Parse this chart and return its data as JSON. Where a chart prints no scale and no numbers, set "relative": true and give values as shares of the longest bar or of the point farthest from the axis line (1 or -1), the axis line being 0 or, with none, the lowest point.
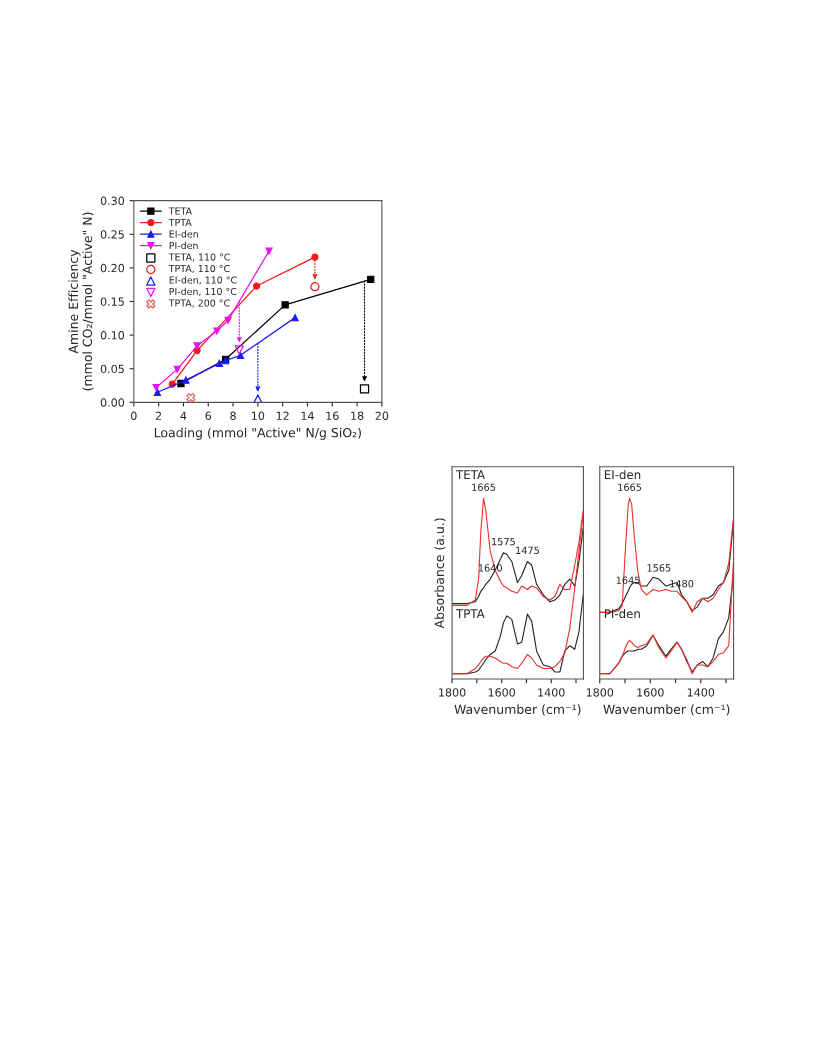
{
  "chart_data": [
    {
      "type": "line",
      "xlabel": "Loading (mmol \"Active\" N/g SiO₂)",
      "ylabel": "Amine Efficiency\n(mmol CO₂/mmol \"Active\" N)",
      "xlim": [
        0,
        20
      ],
      "xticks": [
        0,
        2,
        4,
        6,
        8,
        10,
        12,
        14,
        16,
        18,
        20
      ],
      "ylim": [
        0,
        0.3
      ],
      "yticks": [
        {
          "value": 0,
          "label": "0.00"
        },
        {
          "value": 0.05,
          "label": "0.05"
        },
        {
          "value": 0.1,
          "label": "0.10"
        },
        {
          "value": 0.15,
          "label": "0.15"
        },
        {
          "value": 0.2,
          "label": "0.20"
        },
        {
          "value": 0.25,
          "label": "0.25"
        },
        {
          "value": 0.3,
          "label": "0.30"
        }
      ],
      "legend": "top left",
      "series": [
        {
          "name": "TETA",
          "type": "line",
          "marker": "square",
          "color": "#000000",
          "x": [
            3.8,
            7.4,
            12.2,
            19.1
          ],
          "values": [
            0.028,
            0.064,
            0.145,
            0.183
          ]
        },
        {
          "name": "TPTA",
          "type": "line",
          "marker": "circle",
          "color": "#f01818",
          "x": [
            3.1,
            5.1,
            9.9,
            14.6
          ],
          "values": [
            0.027,
            0.077,
            0.173,
            0.216
          ]
        },
        {
          "name": "EI-den",
          "type": "line",
          "marker": "triangle",
          "color": "#1a1aee",
          "x": [
            1.9,
            4.2,
            6.9,
            7.4,
            8.6,
            13.0
          ],
          "values": [
            0.015,
            0.033,
            0.058,
            0.062,
            0.07,
            0.126
          ]
        },
        {
          "name": "PI-den",
          "type": "line",
          "marker": "triangle_down",
          "color": "#ee11ee",
          "x": [
            1.8,
            3.5,
            5.1,
            6.7,
            7.6,
            10.9
          ],
          "values": [
            0.022,
            0.049,
            0.084,
            0.106,
            0.122,
            0.225
          ]
        },
        {
          "name": "TETA, 110 °C",
          "type": "scatter",
          "marker": "square",
          "color": "#000000",
          "x": [
            18.6
          ],
          "values": [
            0.02
          ]
        },
        {
          "name": "TPTA, 110 °C",
          "type": "scatter",
          "marker": "circle",
          "color": "#f01818",
          "x": [
            14.6
          ],
          "values": [
            0.172
          ]
        },
        {
          "name": "EI-den, 110 °C",
          "type": "scatter",
          "marker": "triangle",
          "color": "#1a1aee",
          "x": [
            10.0
          ],
          "values": [
            0.005
          ]
        },
        {
          "name": "PI-den, 110 °C",
          "type": "scatter",
          "marker": "triangle_down",
          "color": "#ee11ee",
          "x": [
            8.5
          ],
          "values": [
            0.078
          ]
        },
        {
          "name": "TPTA, 200 °C",
          "type": "scatter",
          "marker": "cross",
          "color": "#e06060",
          "x": [
            4.6
          ],
          "values": [
            0.007
          ]
        }
      ]
    },
    {
      "type": "line",
      "relative": true,
      "tick_labels": "x",
      "xlabel": "Wavenumber (cm⁻¹)",
      "ylabel": "Absorbance (a.u.)",
      "xlim": [
        1800,
        1270
      ],
      "xticks": [
        1800,
        {
          "value": 1700,
          "label": null
        },
        1600,
        {
          "value": 1500,
          "label": null
        },
        1400,
        {
          "value": 1300,
          "label": null
        }
      ],
      "x": [
        1800,
        1740,
        1706,
        1693,
        1684,
        1673,
        1664,
        1646,
        1626,
        1606,
        1593,
        1579,
        1559,
        1536,
        1519,
        1496,
        1479,
        1459,
        1432,
        1405,
        1385,
        1365,
        1345,
        1325,
        1305,
        1288,
        1271
      ],
      "annotations": [
        "TETA",
        {
          "text": "1665",
          "x": 1673,
          "y": 1.0
        },
        {
          "text": "1575",
          "x": 1593,
          "y": 0.69
        },
        {
          "text": "1475",
          "x": 1496,
          "y": 0.64
        },
        {
          "text": "1640",
          "x": 1646,
          "y": 0.54
        },
        "TPTA"
      ],
      "series": [
        {
          "color": "#222222",
          "values": [
            0.4,
            0.4,
            0.41,
            0.44,
            0.47,
            0.49,
            0.51,
            0.54,
            0.59,
            0.65,
            0.69,
            0.68,
            0.64,
            0.52,
            0.56,
            0.64,
            0.62,
            0.51,
            0.45,
            0.41,
            0.42,
            0.45,
            0.51,
            0.54,
            0.5,
            0.64,
            0.83
          ]
        },
        {
          "color": "#e8302c",
          "values": [
            0.39,
            0.39,
            0.42,
            0.54,
            0.81,
            1.0,
            0.93,
            0.7,
            0.59,
            0.53,
            0.5,
            0.49,
            0.47,
            0.46,
            0.5,
            0.48,
            0.5,
            0.49,
            0.44,
            0.42,
            0.44,
            0.51,
            0.48,
            0.48,
            0.62,
            0.75,
            0.93
          ]
        },
        {
          "color": "#222222",
          "values": [
            0.0,
            0.0,
            0.01,
            0.02,
            0.04,
            0.06,
            0.08,
            0.11,
            0.13,
            0.21,
            0.29,
            0.33,
            0.31,
            0.17,
            0.18,
            0.34,
            0.3,
            0.13,
            0.05,
            0.04,
            0.01,
            0.01,
            0.13,
            0.16,
            0.14,
            0.24,
            0.45
          ]
        },
        {
          "color": "#e8302c",
          "values": [
            0.0,
            0.0,
            0.03,
            0.05,
            0.07,
            0.09,
            0.1,
            0.1,
            0.09,
            0.07,
            0.06,
            0.06,
            0.04,
            0.03,
            0.06,
            0.11,
            0.09,
            0.05,
            0.03,
            0.03,
            0.04,
            0.07,
            0.12,
            0.26,
            0.49,
            0.7,
            0.91
          ]
        }
      ]
    },
    {
      "type": "line",
      "relative": true,
      "tick_labels": "x",
      "xlabel": "Wavenumber (cm⁻¹)",
      "xlim": [
        1800,
        1270
      ],
      "xticks": [
        1800,
        {
          "value": 1700,
          "label": null
        },
        1600,
        {
          "value": 1500,
          "label": null
        },
        1400,
        {
          "value": 1300,
          "label": null
        }
      ],
      "x": [
        1800,
        1760,
        1725,
        1711,
        1698,
        1688,
        1682,
        1674,
        1663,
        1649,
        1635,
        1614,
        1589,
        1566,
        1538,
        1517,
        1494,
        1476,
        1455,
        1434,
        1414,
        1393,
        1372,
        1351,
        1330,
        1310,
        1289,
        1271
      ],
      "annotations": [
        "EI-den",
        {
          "text": "1665",
          "x": 1682,
          "y": 1.0
        },
        {
          "text": "1645",
          "x": 1688,
          "y": 0.47
        },
        {
          "text": "1565",
          "x": 1566,
          "y": 0.54
        },
        {
          "text": "1480",
          "x": 1476,
          "y": 0.45
        },
        "PI-den"
      ],
      "series": [
        {
          "color": "#222222",
          "values": [
            0.35,
            0.35,
            0.37,
            0.4,
            0.44,
            0.47,
            0.49,
            0.51,
            0.52,
            0.52,
            0.5,
            0.5,
            0.55,
            0.54,
            0.5,
            0.51,
            0.52,
            0.45,
            0.41,
            0.36,
            0.38,
            0.43,
            0.43,
            0.45,
            0.5,
            0.52,
            0.59,
            0.86
          ]
        },
        {
          "color": "#e8302c",
          "values": [
            0.35,
            0.35,
            0.36,
            0.39,
            0.72,
            0.95,
            1.0,
            0.97,
            0.78,
            0.58,
            0.48,
            0.45,
            0.48,
            0.47,
            0.48,
            0.47,
            0.47,
            0.44,
            0.41,
            0.35,
            0.41,
            0.43,
            0.41,
            0.43,
            0.48,
            0.52,
            0.63,
            0.88
          ]
        },
        {
          "color": "#222222",
          "values": [
            0.0,
            0.0,
            0.06,
            0.1,
            0.12,
            0.13,
            0.13,
            0.13,
            0.13,
            0.14,
            0.14,
            0.16,
            0.22,
            0.16,
            0.1,
            0.14,
            0.18,
            0.14,
            0.07,
            0.01,
            0.05,
            0.07,
            0.04,
            0.09,
            0.2,
            0.24,
            0.32,
            0.56
          ]
        },
        {
          "color": "#e8302c",
          "values": [
            0.0,
            0.0,
            0.06,
            0.1,
            0.15,
            0.18,
            0.19,
            0.18,
            0.16,
            0.15,
            0.16,
            0.17,
            0.22,
            0.15,
            0.09,
            0.13,
            0.18,
            0.14,
            0.08,
            0.0,
            0.05,
            0.05,
            0.04,
            0.07,
            0.11,
            0.12,
            0.16,
            0.63
          ]
        }
      ]
    }
  ]
}
